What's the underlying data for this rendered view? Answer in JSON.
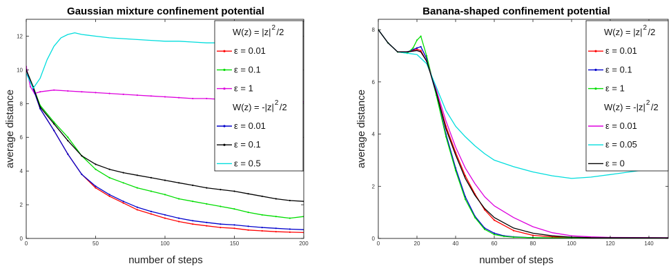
{
  "chart_data": [
    {
      "type": "line",
      "title": "Gaussian mixture confinement potential",
      "xlabel": "number of steps",
      "ylabel": "average distance",
      "xlim": [
        0,
        200
      ],
      "ylim": [
        0,
        13
      ],
      "xticks": [
        "0",
        "50",
        "100",
        "150",
        "200"
      ],
      "yticks": [
        "0",
        "2",
        "4",
        "6",
        "8",
        "10",
        "12"
      ],
      "grid": false,
      "legend_position": "top-right",
      "legend_groups": [
        {
          "header": "W(z) =   |z|",
          "exp": "2",
          "tail": "/2",
          "series_from": 0,
          "series_to": 3
        },
        {
          "header": "W(z) =  -|z|",
          "exp": "2",
          "tail": "/2",
          "series_from": 3,
          "series_to": 6
        }
      ],
      "series": [
        {
          "name": "ε = 0.01",
          "color": "#ff0000",
          "marker": "dot",
          "x": [
            0,
            5,
            10,
            20,
            30,
            40,
            50,
            60,
            70,
            80,
            90,
            100,
            110,
            120,
            130,
            140,
            150,
            160,
            170,
            180,
            190,
            200
          ],
          "y": [
            10.0,
            8.9,
            7.7,
            6.4,
            5.0,
            3.8,
            3.0,
            2.5,
            2.1,
            1.7,
            1.45,
            1.2,
            1.0,
            0.85,
            0.75,
            0.65,
            0.6,
            0.5,
            0.45,
            0.4,
            0.37,
            0.35
          ]
        },
        {
          "name": "ε = 0.1",
          "color": "#00dd00",
          "marker": "dot",
          "x": [
            0,
            5,
            10,
            20,
            30,
            40,
            50,
            60,
            70,
            80,
            90,
            100,
            110,
            120,
            130,
            140,
            150,
            160,
            170,
            180,
            190,
            200
          ],
          "y": [
            10.0,
            9.0,
            7.9,
            6.9,
            6.0,
            4.9,
            4.1,
            3.6,
            3.3,
            3.0,
            2.8,
            2.6,
            2.35,
            2.2,
            2.05,
            1.9,
            1.75,
            1.55,
            1.4,
            1.3,
            1.2,
            1.3
          ]
        },
        {
          "name": "ε = 1",
          "color": "#dd00dd",
          "marker": "dot",
          "x": [
            0,
            3,
            6,
            10,
            20,
            30,
            40,
            50,
            60,
            70,
            80,
            90,
            100,
            110,
            120,
            130,
            140,
            150,
            160,
            170,
            180,
            190,
            200
          ],
          "y": [
            10.2,
            9.0,
            8.6,
            8.7,
            8.8,
            8.75,
            8.7,
            8.65,
            8.6,
            8.55,
            8.5,
            8.45,
            8.4,
            8.35,
            8.3,
            8.3,
            8.25,
            8.2,
            8.2,
            8.2,
            8.15,
            8.15,
            8.1
          ]
        },
        {
          "name": "ε = 0.01",
          "color": "#0000cc",
          "marker": "dot",
          "x": [
            0,
            5,
            10,
            20,
            30,
            40,
            50,
            60,
            70,
            80,
            90,
            100,
            110,
            120,
            130,
            140,
            150,
            160,
            170,
            180,
            190,
            200
          ],
          "y": [
            10.0,
            8.9,
            7.7,
            6.4,
            5.0,
            3.8,
            3.1,
            2.6,
            2.2,
            1.85,
            1.6,
            1.4,
            1.2,
            1.05,
            0.95,
            0.85,
            0.8,
            0.72,
            0.65,
            0.6,
            0.55,
            0.52
          ]
        },
        {
          "name": "ε = 0.1",
          "color": "#000000",
          "marker": "dot",
          "x": [
            0,
            5,
            10,
            20,
            30,
            40,
            50,
            60,
            70,
            80,
            90,
            100,
            110,
            120,
            130,
            140,
            150,
            160,
            170,
            180,
            190,
            200
          ],
          "y": [
            10.0,
            9.0,
            7.8,
            6.8,
            5.8,
            4.9,
            4.4,
            4.1,
            3.9,
            3.75,
            3.6,
            3.45,
            3.3,
            3.15,
            3.0,
            2.9,
            2.8,
            2.65,
            2.5,
            2.35,
            2.25,
            2.2
          ]
        },
        {
          "name": "ε = 0.5",
          "color": "#00dddd",
          "marker": "none",
          "x": [
            0,
            5,
            10,
            15,
            20,
            25,
            30,
            35,
            40,
            50,
            60,
            70,
            80,
            90,
            100,
            110,
            120,
            130,
            140,
            150
          ],
          "y": [
            9.8,
            8.9,
            9.5,
            10.6,
            11.4,
            11.9,
            12.1,
            12.2,
            12.1,
            12.0,
            11.9,
            11.85,
            11.8,
            11.75,
            11.7,
            11.7,
            11.65,
            11.6,
            11.6,
            11.6
          ]
        }
      ]
    },
    {
      "type": "line",
      "title": "Banana-shaped confinement potential",
      "xlabel": "number of steps",
      "ylabel": "average distance",
      "xlim": [
        0,
        150
      ],
      "ylim": [
        0,
        8.4
      ],
      "xticks": [
        "0",
        "20",
        "40",
        "60",
        "80",
        "100",
        "120",
        "140"
      ],
      "yticks": [
        "0",
        "2",
        "4",
        "6",
        "8"
      ],
      "grid": false,
      "legend_position": "top-right",
      "legend_groups": [
        {
          "header": "W(z) =   |z|",
          "exp": "2",
          "tail": "/2",
          "series_from": 0,
          "series_to": 3
        },
        {
          "header": "W(z) =  -|z|",
          "exp": "2",
          "tail": "/2",
          "series_from": 3,
          "series_to": 6
        }
      ],
      "series": [
        {
          "name": "ε = 0.01",
          "color": "#ff0000",
          "marker": "dot",
          "x": [
            0,
            5,
            10,
            15,
            20,
            22,
            25,
            30,
            35,
            40,
            45,
            50,
            55,
            60,
            70,
            80,
            90,
            100,
            120,
            150
          ],
          "y": [
            8.0,
            7.5,
            7.15,
            7.15,
            7.25,
            7.2,
            6.8,
            5.6,
            4.3,
            3.3,
            2.4,
            1.7,
            1.1,
            0.7,
            0.3,
            0.12,
            0.06,
            0.04,
            0.03,
            0.02
          ]
        },
        {
          "name": "ε = 0.1",
          "color": "#0000cc",
          "marker": "dot",
          "x": [
            0,
            5,
            10,
            15,
            20,
            22,
            25,
            30,
            35,
            40,
            45,
            50,
            55,
            60,
            65,
            70,
            80,
            90,
            100,
            150
          ],
          "y": [
            8.0,
            7.5,
            7.15,
            7.15,
            7.3,
            7.35,
            6.9,
            5.5,
            4.0,
            2.7,
            1.6,
            0.85,
            0.4,
            0.2,
            0.1,
            0.06,
            0.03,
            0.02,
            0.01,
            0.01
          ]
        },
        {
          "name": "ε = 1",
          "color": "#00dd00",
          "marker": "dot",
          "x": [
            0,
            5,
            10,
            15,
            18,
            20,
            22,
            25,
            30,
            35,
            40,
            45,
            50,
            55,
            60,
            65,
            70,
            80,
            90,
            150
          ],
          "y": [
            8.0,
            7.5,
            7.15,
            7.1,
            7.3,
            7.6,
            7.75,
            7.0,
            5.5,
            3.9,
            2.6,
            1.5,
            0.8,
            0.35,
            0.15,
            0.08,
            0.05,
            0.03,
            0.02,
            0.01
          ]
        },
        {
          "name": "ε = 0.01",
          "color": "#dd00dd",
          "marker": "none",
          "x": [
            0,
            5,
            10,
            15,
            20,
            22,
            25,
            30,
            35,
            40,
            45,
            50,
            55,
            60,
            70,
            80,
            90,
            100,
            110,
            120,
            150
          ],
          "y": [
            8.0,
            7.5,
            7.15,
            7.15,
            7.2,
            7.15,
            6.8,
            5.7,
            4.5,
            3.5,
            2.7,
            2.1,
            1.6,
            1.25,
            0.8,
            0.45,
            0.22,
            0.1,
            0.06,
            0.04,
            0.03
          ]
        },
        {
          "name": "ε = 0.05",
          "color": "#00dddd",
          "marker": "none",
          "x": [
            0,
            5,
            10,
            15,
            20,
            25,
            30,
            35,
            40,
            45,
            50,
            55,
            60,
            70,
            80,
            90,
            100,
            110,
            120,
            130,
            140,
            150
          ],
          "y": [
            8.0,
            7.5,
            7.15,
            7.1,
            7.05,
            6.7,
            5.8,
            4.9,
            4.3,
            3.9,
            3.55,
            3.25,
            3.0,
            2.75,
            2.55,
            2.4,
            2.3,
            2.35,
            2.45,
            2.55,
            2.65,
            2.75
          ]
        },
        {
          "name": "ε = 0",
          "color": "#000000",
          "marker": "none",
          "x": [
            0,
            5,
            10,
            15,
            20,
            22,
            25,
            30,
            35,
            40,
            45,
            50,
            55,
            60,
            70,
            80,
            90,
            100,
            110,
            150
          ],
          "y": [
            8.0,
            7.5,
            7.15,
            7.15,
            7.2,
            7.15,
            6.8,
            5.6,
            4.2,
            3.2,
            2.3,
            1.65,
            1.15,
            0.8,
            0.4,
            0.2,
            0.1,
            0.05,
            0.03,
            0.02
          ]
        }
      ]
    }
  ]
}
